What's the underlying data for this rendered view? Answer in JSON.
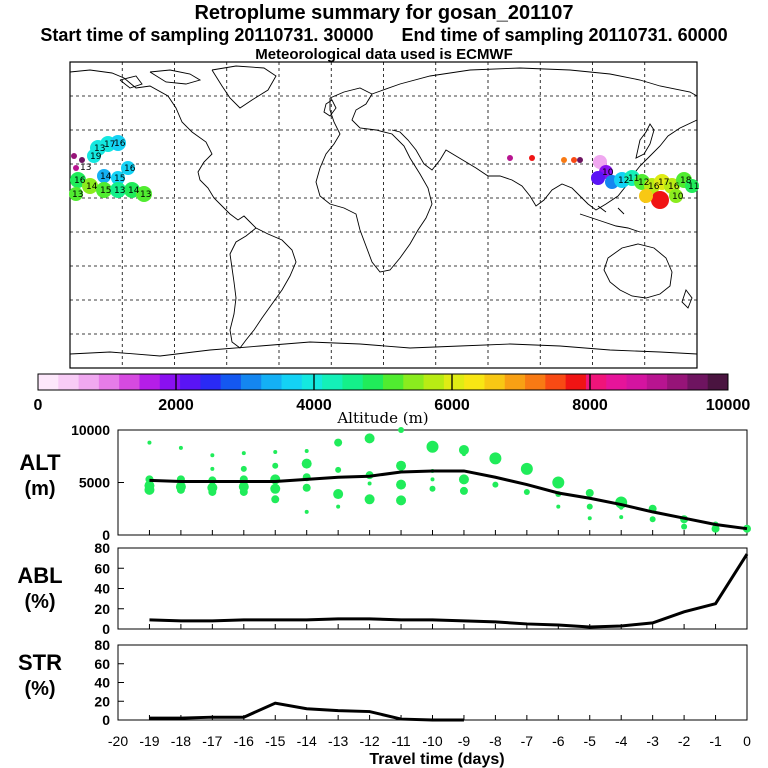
{
  "header": {
    "title": "Retroplume summary for gosan_201107",
    "subtitle_start": "Start time of sampling 20110731. 30000",
    "subtitle_end": "End time of sampling 20110731. 60000",
    "subtitle_met": "Meteorological data used is ECMWF"
  },
  "colorbar": {
    "tick_labels": [
      "0",
      "2000",
      "4000",
      "6000",
      "8000",
      "10000"
    ],
    "label": "Altitude (m)",
    "range": [
      0,
      10000
    ],
    "colors": [
      "#fde8fb",
      "#f8ccf6",
      "#f0a8f0",
      "#e67ce8",
      "#d64ae0",
      "#b51ee8",
      "#8a10f0",
      "#5a14f5",
      "#2a2af5",
      "#1458f0",
      "#1486f0",
      "#14b0f5",
      "#14d2f5",
      "#14e8e0",
      "#14f0b8",
      "#14f08a",
      "#20ec5a",
      "#50ec30",
      "#8aec1e",
      "#b8ec14",
      "#e0ec14",
      "#f8e614",
      "#f8c814",
      "#f8a014",
      "#f87a14",
      "#f84a14",
      "#f01414",
      "#f0147a",
      "#e6149a",
      "#d414a0",
      "#b81490",
      "#961478",
      "#6e1460",
      "#4a1440"
    ]
  },
  "chart_data": [
    {
      "type": "scatter",
      "panel": "ALT",
      "ylabel": "ALT",
      "yunit": "(m)",
      "ylim": [
        0,
        10000
      ],
      "yticks": [
        "0",
        "5000",
        "10000"
      ],
      "line": {
        "x": [
          -19,
          -18,
          -17,
          -16,
          -15,
          -14,
          -13,
          -12,
          -11,
          -10,
          -9,
          -8,
          -7,
          -6,
          -5,
          -4,
          -3,
          -2,
          -1,
          0
        ],
        "y": [
          5200,
          5100,
          5100,
          5100,
          5100,
          5300,
          5500,
          5600,
          6000,
          6100,
          6100,
          5500,
          4800,
          4000,
          3500,
          2900,
          2200,
          1600,
          1000,
          600
        ]
      },
      "dots": [
        {
          "x": -19,
          "y": 8800,
          "s": 2
        },
        {
          "x": -19,
          "y": 5300,
          "s": 4
        },
        {
          "x": -19,
          "y": 4700,
          "s": 5
        },
        {
          "x": -19,
          "y": 4300,
          "s": 5
        },
        {
          "x": -18,
          "y": 8300,
          "s": 2
        },
        {
          "x": -18,
          "y": 5300,
          "s": 4
        },
        {
          "x": -18,
          "y": 4600,
          "s": 5
        },
        {
          "x": -18,
          "y": 4300,
          "s": 4
        },
        {
          "x": -17,
          "y": 7600,
          "s": 2
        },
        {
          "x": -17,
          "y": 6300,
          "s": 2
        },
        {
          "x": -17,
          "y": 5200,
          "s": 4
        },
        {
          "x": -17,
          "y": 4500,
          "s": 5
        },
        {
          "x": -17,
          "y": 4100,
          "s": 4
        },
        {
          "x": -16,
          "y": 7800,
          "s": 2
        },
        {
          "x": -16,
          "y": 6300,
          "s": 3
        },
        {
          "x": -16,
          "y": 5300,
          "s": 4
        },
        {
          "x": -16,
          "y": 4600,
          "s": 5
        },
        {
          "x": -16,
          "y": 4100,
          "s": 4
        },
        {
          "x": -15,
          "y": 7900,
          "s": 2
        },
        {
          "x": -15,
          "y": 6600,
          "s": 3
        },
        {
          "x": -15,
          "y": 5300,
          "s": 5
        },
        {
          "x": -15,
          "y": 4400,
          "s": 5
        },
        {
          "x": -15,
          "y": 3400,
          "s": 4
        },
        {
          "x": -14,
          "y": 8000,
          "s": 2
        },
        {
          "x": -14,
          "y": 6800,
          "s": 5
        },
        {
          "x": -14,
          "y": 5500,
          "s": 4
        },
        {
          "x": -14,
          "y": 4500,
          "s": 4
        },
        {
          "x": -14,
          "y": 2200,
          "s": 2
        },
        {
          "x": -13,
          "y": 8800,
          "s": 4
        },
        {
          "x": -13,
          "y": 6200,
          "s": 3
        },
        {
          "x": -13,
          "y": 3900,
          "s": 5
        },
        {
          "x": -13,
          "y": 2700,
          "s": 2
        },
        {
          "x": -12,
          "y": 9200,
          "s": 5
        },
        {
          "x": -12,
          "y": 5700,
          "s": 4
        },
        {
          "x": -12,
          "y": 4900,
          "s": 2
        },
        {
          "x": -12,
          "y": 3400,
          "s": 5
        },
        {
          "x": -11,
          "y": 10000,
          "s": 3
        },
        {
          "x": -11,
          "y": 6600,
          "s": 5
        },
        {
          "x": -11,
          "y": 4800,
          "s": 5
        },
        {
          "x": -11,
          "y": 3300,
          "s": 5
        },
        {
          "x": -10,
          "y": 8400,
          "s": 6
        },
        {
          "x": -10,
          "y": 6100,
          "s": 2
        },
        {
          "x": -10,
          "y": 5300,
          "s": 2
        },
        {
          "x": -10,
          "y": 4400,
          "s": 3
        },
        {
          "x": -9,
          "y": 8100,
          "s": 5
        },
        {
          "x": -9,
          "y": 7700,
          "s": 2
        },
        {
          "x": -9,
          "y": 5300,
          "s": 5
        },
        {
          "x": -9,
          "y": 4200,
          "s": 4
        },
        {
          "x": -8,
          "y": 7300,
          "s": 6
        },
        {
          "x": -8,
          "y": 4800,
          "s": 3
        },
        {
          "x": -7,
          "y": 6300,
          "s": 6
        },
        {
          "x": -7,
          "y": 4100,
          "s": 3
        },
        {
          "x": -6,
          "y": 5000,
          "s": 6
        },
        {
          "x": -6,
          "y": 3900,
          "s": 3
        },
        {
          "x": -6,
          "y": 2700,
          "s": 2
        },
        {
          "x": -5,
          "y": 4000,
          "s": 4
        },
        {
          "x": -5,
          "y": 2700,
          "s": 3
        },
        {
          "x": -5,
          "y": 1600,
          "s": 2
        },
        {
          "x": -4,
          "y": 3100,
          "s": 6
        },
        {
          "x": -4,
          "y": 2600,
          "s": 2
        },
        {
          "x": -4,
          "y": 1700,
          "s": 2
        },
        {
          "x": -3,
          "y": 2500,
          "s": 4
        },
        {
          "x": -3,
          "y": 1500,
          "s": 3
        },
        {
          "x": -2,
          "y": 1500,
          "s": 4
        },
        {
          "x": -2,
          "y": 800,
          "s": 3
        },
        {
          "x": -1,
          "y": 1000,
          "s": 3
        },
        {
          "x": -1,
          "y": 600,
          "s": 4
        },
        {
          "x": 0,
          "y": 600,
          "s": 4
        }
      ]
    },
    {
      "type": "line",
      "panel": "ABL",
      "ylabel": "ABL",
      "yunit": "(%)",
      "ylim": [
        0,
        80
      ],
      "yticks": [
        "0",
        "20",
        "40",
        "60",
        "80"
      ],
      "x": [
        -19,
        -18,
        -17,
        -16,
        -15,
        -14,
        -13,
        -12,
        -11,
        -10,
        -9,
        -8,
        -7,
        -6,
        -5,
        -4,
        -3,
        -2,
        -1,
        0
      ],
      "y": [
        9,
        8,
        8,
        9,
        9,
        9,
        10,
        10,
        9,
        9,
        8,
        7,
        5,
        4,
        2,
        3,
        6,
        17,
        25,
        74
      ]
    },
    {
      "type": "line",
      "panel": "STR",
      "ylabel": "STR",
      "yunit": "(%)",
      "ylim": [
        0,
        80
      ],
      "yticks": [
        "0",
        "20",
        "40",
        "60",
        "80"
      ],
      "x": [
        -19,
        -18,
        -17,
        -16,
        -15,
        -14,
        -13,
        -12,
        -11,
        -10,
        -9
      ],
      "y": [
        2,
        2,
        3,
        3,
        18,
        12,
        10,
        9,
        1,
        0,
        0
      ]
    }
  ],
  "xaxis": {
    "label": "Travel time (days)",
    "ticks": [
      "-20",
      "-19",
      "-18",
      "-17",
      "-16",
      "-15",
      "-14",
      "-13",
      "-12",
      "-11",
      "-10",
      "-9",
      "-8",
      "-7",
      "-6",
      "-5",
      "-4",
      "-3",
      "-2",
      "-1",
      "0"
    ],
    "range": [
      -20,
      0
    ]
  },
  "map": {
    "type": "trajectory-map",
    "clusters": [
      {
        "region": "central-pacific-north",
        "labels": [
          "13",
          "17",
          "16",
          "19"
        ],
        "color": "#14e8e0"
      },
      {
        "region": "central-pacific-mid",
        "labels": [
          "16",
          "14",
          "15"
        ],
        "color": "#14d2f5"
      },
      {
        "region": "central-pacific-south",
        "labels": [
          "16",
          "14",
          "15",
          "13",
          "14",
          "13",
          "13",
          "13"
        ],
        "color": "#50ec30"
      },
      {
        "region": "east-asia",
        "labels": [
          "12",
          "11",
          "12",
          "10",
          "16",
          "17",
          "16",
          "18",
          "11",
          "10"
        ],
        "color": "#b8ec14"
      }
    ]
  }
}
